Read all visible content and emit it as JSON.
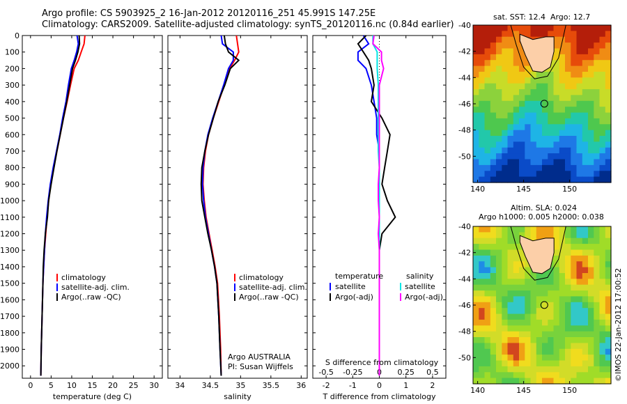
{
  "header": {
    "line1": "Argo profile: CS 5903925_2 16-Jan-2012 20120116_251 45.991S 147.25E",
    "line2": "Climatology: CARS2009. Satellite-adjusted climatology: synTS_20120116.nc (0.84d earlier)"
  },
  "colors": {
    "climatology": "#ff0000",
    "satellite": "#0000ff",
    "argo": "#000000",
    "sal_satellite": "#00e5e5",
    "sal_argo": "#ff00ff",
    "land": "#fccfa8"
  },
  "chart_data": [
    {
      "type": "line",
      "id": "temperature",
      "xlabel": "temperature (deg C)",
      "ylabel": "",
      "xlim": [
        -2,
        32
      ],
      "ylim": [
        2075,
        0
      ],
      "xticks": [
        0,
        5,
        10,
        15,
        20,
        25,
        30
      ],
      "yticks": [
        0,
        100,
        200,
        300,
        400,
        500,
        600,
        700,
        800,
        900,
        1000,
        1100,
        1200,
        1300,
        1400,
        1500,
        1600,
        1700,
        1800,
        1900,
        2000
      ],
      "legend": [
        "climatology",
        "satellite-adj. clim.",
        "Argo(..raw -QC)"
      ],
      "series": [
        {
          "name": "climatology",
          "color": "#ff0000",
          "x": [
            13.2,
            13.0,
            12.3,
            11.6,
            10.6,
            9.7,
            8.9,
            8.0,
            7.2,
            6.4,
            5.6,
            4.9,
            4.4,
            4.0,
            3.7,
            3.4,
            3.2,
            3.0,
            2.8,
            2.6,
            2.5
          ],
          "y": [
            0,
            50,
            100,
            150,
            200,
            300,
            400,
            500,
            600,
            700,
            800,
            900,
            1000,
            1100,
            1200,
            1300,
            1400,
            1500,
            1700,
            1900,
            2060
          ]
        },
        {
          "name": "satellite-adj. clim.",
          "color": "#0000ff",
          "x": [
            11.3,
            11.6,
            11.2,
            10.6,
            9.9,
            9.2,
            8.6,
            7.8,
            7.1,
            6.3,
            5.5,
            4.8,
            4.3,
            3.9,
            3.6,
            3.4,
            3.2,
            3.0,
            2.8,
            2.6,
            2.5
          ],
          "y": [
            0,
            50,
            100,
            150,
            200,
            300,
            400,
            500,
            600,
            700,
            800,
            900,
            1000,
            1100,
            1200,
            1300,
            1400,
            1500,
            1700,
            1900,
            2060
          ]
        },
        {
          "name": "Argo(..raw -QC)",
          "color": "#000000",
          "x": [
            11.8,
            11.9,
            11.5,
            10.9,
            10.2,
            9.5,
            8.8,
            8.0,
            7.2,
            6.4,
            5.7,
            5.0,
            4.4,
            4.1,
            3.6,
            3.3,
            3.1,
            3.0,
            2.8,
            2.6,
            2.5
          ],
          "y": [
            0,
            50,
            100,
            150,
            200,
            300,
            400,
            500,
            600,
            700,
            800,
            900,
            1000,
            1100,
            1200,
            1300,
            1400,
            1500,
            1700,
            1900,
            2060
          ]
        }
      ]
    },
    {
      "type": "line",
      "id": "salinity",
      "xlabel": "salinity",
      "ylabel": "",
      "xlim": [
        33.8,
        36.1
      ],
      "ylim": [
        2075,
        0
      ],
      "xticks": [
        34,
        34.5,
        35,
        35.5,
        36
      ],
      "legend": [
        "climatology",
        "satellite-adj. clim.",
        "Argo(..raw -QC)"
      ],
      "annotation": [
        "Argo AUSTRALIA",
        "PI: Susan Wijffels"
      ],
      "series": [
        {
          "name": "climatology",
          "color": "#ff0000",
          "x": [
            34.93,
            34.95,
            34.97,
            34.9,
            34.82,
            34.73,
            34.64,
            34.55,
            34.47,
            34.42,
            34.39,
            34.38,
            34.4,
            34.43,
            34.48,
            34.53,
            34.58,
            34.62,
            34.65,
            34.67,
            34.68
          ],
          "y": [
            0,
            50,
            100,
            150,
            200,
            300,
            400,
            500,
            600,
            700,
            800,
            900,
            1000,
            1100,
            1200,
            1300,
            1400,
            1500,
            1700,
            1900,
            2060
          ]
        },
        {
          "name": "satellite-adj. clim.",
          "color": "#0000ff",
          "x": [
            34.68,
            34.7,
            34.88,
            34.88,
            34.8,
            34.72,
            34.63,
            34.54,
            34.46,
            34.41,
            34.38,
            34.37,
            34.39,
            34.42,
            34.47,
            34.52,
            34.57,
            34.61,
            34.64,
            34.66,
            34.68
          ],
          "y": [
            0,
            50,
            100,
            150,
            200,
            300,
            400,
            500,
            600,
            700,
            800,
            900,
            1000,
            1100,
            1200,
            1300,
            1400,
            1500,
            1700,
            1900,
            2060
          ]
        },
        {
          "name": "Argo(..raw -QC)",
          "color": "#000000",
          "x": [
            34.73,
            34.75,
            34.8,
            34.97,
            34.83,
            34.74,
            34.63,
            34.55,
            34.47,
            34.41,
            34.36,
            34.35,
            34.36,
            34.41,
            34.46,
            34.52,
            34.57,
            34.61,
            34.64,
            34.66,
            34.68
          ],
          "y": [
            0,
            50,
            100,
            150,
            200,
            300,
            400,
            500,
            600,
            700,
            800,
            900,
            1000,
            1100,
            1200,
            1300,
            1400,
            1500,
            1700,
            1900,
            2060
          ]
        }
      ]
    },
    {
      "type": "line",
      "id": "difference",
      "xlabel": "T difference from climatology",
      "xlabel_top": "S difference from climatology",
      "xlim": [
        -2.5,
        2.5
      ],
      "ylim": [
        2075,
        0
      ],
      "xticks": [
        -2,
        -1,
        0,
        1,
        2
      ],
      "xticks_salinity": [
        -0.5,
        -0.25,
        0,
        0.25,
        0.5
      ],
      "legend_temperature_title": "temperature",
      "legend_salinity_title": "salinity",
      "legend": [
        "satellite",
        "Argo(-adj)"
      ],
      "series": [
        {
          "name": "satellite",
          "group": "temperature",
          "color": "#0000ff",
          "x": [
            -0.6,
            -0.4,
            -0.8,
            -0.8,
            -0.5,
            -0.3,
            -0.2,
            -0.1,
            -0.1,
            0,
            0,
            0,
            0,
            0,
            0,
            0,
            0,
            0,
            0,
            0,
            0
          ],
          "y": [
            0,
            50,
            100,
            150,
            200,
            300,
            400,
            500,
            600,
            700,
            800,
            900,
            1000,
            1100,
            1200,
            1300,
            1400,
            1500,
            1700,
            1900,
            2060
          ]
        },
        {
          "name": "Argo(-adj)",
          "group": "temperature",
          "color": "#000000",
          "x": [
            -0.5,
            -0.8,
            -0.6,
            -0.4,
            -0.3,
            -0.2,
            -0.3,
            0.1,
            0.4,
            0.3,
            0.2,
            0.1,
            0.3,
            0.6,
            0.1,
            0.0,
            0.0,
            0.0,
            0.0,
            0.0,
            0.0
          ],
          "y": [
            0,
            50,
            100,
            150,
            200,
            300,
            400,
            500,
            600,
            700,
            800,
            900,
            1000,
            1100,
            1200,
            1300,
            1400,
            1500,
            1700,
            1900,
            2060
          ]
        },
        {
          "name": "satellite",
          "group": "salinity",
          "color": "#00e5e5",
          "x": [
            -0.06,
            -0.06,
            -0.02,
            -0.02,
            -0.02,
            -0.01,
            -0.01,
            -0.01,
            -0.01,
            -0.01,
            0,
            0,
            0,
            0,
            0,
            0,
            0,
            0,
            0,
            0,
            0
          ],
          "y": [
            0,
            50,
            100,
            150,
            200,
            300,
            400,
            500,
            600,
            700,
            800,
            900,
            1000,
            1100,
            1200,
            1300,
            1400,
            1500,
            1700,
            1900,
            2060
          ]
        },
        {
          "name": "Argo(-adj)",
          "group": "salinity",
          "color": "#ff00ff",
          "x": [
            -0.05,
            -0.06,
            0.02,
            0.02,
            0.04,
            0.0,
            0.0,
            0.0,
            0.0,
            0.0,
            0.0,
            -0.01,
            -0.01,
            0.0,
            -0.01,
            0.0,
            0.0,
            0.0,
            0.0,
            0.0,
            0.0
          ],
          "y": [
            0,
            50,
            100,
            150,
            200,
            300,
            400,
            500,
            600,
            700,
            800,
            900,
            1000,
            1100,
            1200,
            1300,
            1400,
            1500,
            1700,
            1900,
            2060
          ]
        }
      ]
    },
    {
      "type": "heatmap",
      "id": "sst-map",
      "title": "sat. SST: 12.4  Argo: 12.7",
      "xlim": [
        139.5,
        154.5
      ],
      "ylim": [
        -52,
        -40
      ],
      "xticks": [
        140,
        145,
        150
      ],
      "yticks": [
        -40,
        -42,
        -44,
        -46,
        -48,
        -50
      ],
      "marker": {
        "lon": 147.25,
        "lat": -45.991
      }
    },
    {
      "type": "heatmap",
      "id": "sla-map",
      "title": "Altim. SLA: 0.024",
      "subtitle": "Argo h1000: 0.005 h2000: 0.038",
      "xlim": [
        139.5,
        154.5
      ],
      "ylim": [
        -52,
        -40
      ],
      "xticks": [
        140,
        145,
        150
      ],
      "yticks": [
        -40,
        -42,
        -44,
        -46,
        -48,
        -50
      ],
      "marker": {
        "lon": 147.25,
        "lat": -45.991
      }
    }
  ],
  "footer": {
    "stamp": "©IMOS 22-Jan-2012 17:00:52"
  }
}
